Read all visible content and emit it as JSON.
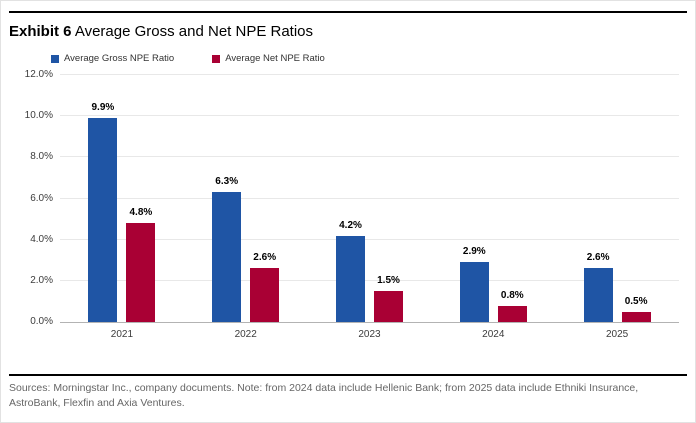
{
  "title": {
    "prefix": "Exhibit 6",
    "rest": " Average Gross and Net NPE Ratios"
  },
  "footer": {
    "line1": "Sources: Morningstar Inc., company documents. Note: from 2024 data include Hellenic Bank; from 2025 data include Ethniki Insurance,",
    "line2": "AstroBank, Flexfin and Axia Ventures."
  },
  "colors": {
    "gross_blue": "#1f55a5",
    "net_red": "#a90034",
    "gridline": "#e8e8e8",
    "axis_line": "#b3b3b3"
  },
  "chart_data": {
    "type": "bar",
    "categories": [
      "2021",
      "2022",
      "2023",
      "2024",
      "2025"
    ],
    "series": [
      {
        "name": "Average Gross NPE Ratio",
        "color": "#1f55a5",
        "values": [
          9.9,
          6.3,
          4.2,
          2.9,
          2.6
        ]
      },
      {
        "name": "Average Net NPE Ratio",
        "color": "#a90034",
        "values": [
          4.8,
          2.6,
          1.5,
          0.8,
          0.5
        ]
      }
    ],
    "data_labels": {
      "gross": [
        "9.9%",
        "6.3%",
        "4.2%",
        "2.9%",
        "2.6%"
      ],
      "net": [
        "4.8%",
        "2.6%",
        "1.5%",
        "0.8%",
        "0.5%"
      ]
    },
    "ylim": [
      0,
      12
    ],
    "ytick_step": 2,
    "yticks": [
      {
        "value": 0,
        "label": "0.0%"
      },
      {
        "value": 2,
        "label": "2.0%"
      },
      {
        "value": 4,
        "label": "4.0%"
      },
      {
        "value": 6,
        "label": "6.0%"
      },
      {
        "value": 8,
        "label": "8.0%"
      },
      {
        "value": 10,
        "label": "10.0%"
      },
      {
        "value": 12,
        "label": "12.0%"
      }
    ],
    "grid": true,
    "legend_position": "top-left",
    "title": "Average Gross and Net NPE Ratios"
  }
}
